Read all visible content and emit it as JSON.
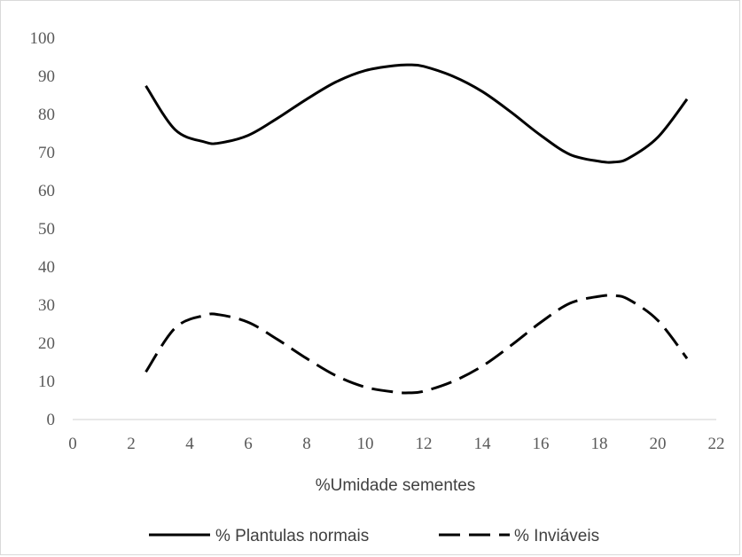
{
  "chart_data": {
    "type": "line",
    "title": "",
    "xlabel": "%Umidade sementes",
    "ylabel": "",
    "xlim": [
      0,
      22
    ],
    "ylim": [
      0,
      100
    ],
    "x_ticks": [
      0,
      2,
      4,
      6,
      8,
      10,
      12,
      14,
      16,
      18,
      20,
      22
    ],
    "y_ticks": [
      0,
      10,
      20,
      30,
      40,
      50,
      60,
      70,
      80,
      90,
      100
    ],
    "grid": false,
    "legend_position": "bottom",
    "series": [
      {
        "name": "% Plantulas normais",
        "style": "solid",
        "color": "#000000",
        "x": [
          2.5,
          3.5,
          4.5,
          5.0,
          6.0,
          7.0,
          8.0,
          9.0,
          10.0,
          11.0,
          11.5,
          12.0,
          13.0,
          14.0,
          15.0,
          16.0,
          17.0,
          18.0,
          18.5,
          19.0,
          20.0,
          21.0
        ],
        "y": [
          87.5,
          76.0,
          72.8,
          72.5,
          74.5,
          79.0,
          84.0,
          88.5,
          91.5,
          92.8,
          93.0,
          92.6,
          90.0,
          86.0,
          80.5,
          74.5,
          69.5,
          67.7,
          67.5,
          68.5,
          74.0,
          84.0
        ]
      },
      {
        "name": "% Inviáveis",
        "style": "dashed",
        "color": "#000000",
        "x": [
          2.5,
          3.5,
          4.5,
          5.0,
          6.0,
          7.0,
          8.0,
          9.0,
          10.0,
          11.0,
          11.5,
          12.0,
          13.0,
          14.0,
          15.0,
          16.0,
          17.0,
          18.0,
          18.5,
          19.0,
          20.0,
          21.0
        ],
        "y": [
          12.5,
          24.0,
          27.3,
          27.5,
          25.5,
          21.0,
          16.0,
          11.5,
          8.5,
          7.2,
          7.0,
          7.4,
          10.0,
          14.0,
          19.5,
          25.5,
          30.5,
          32.3,
          32.5,
          31.5,
          26.0,
          16.0
        ]
      }
    ]
  }
}
